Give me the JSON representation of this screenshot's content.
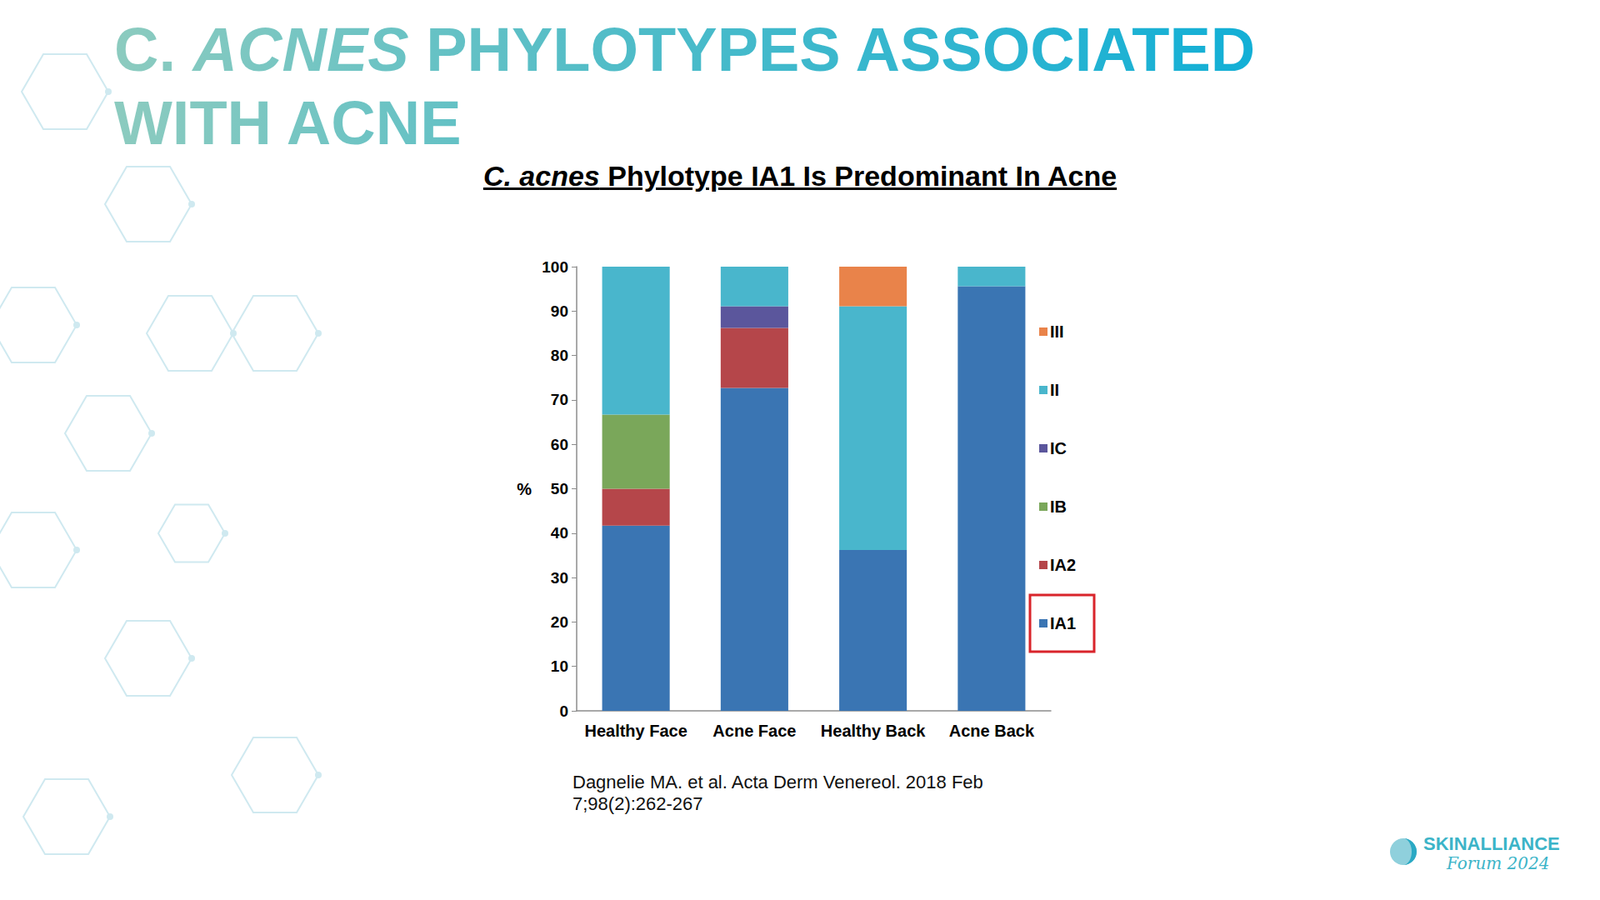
{
  "slide": {
    "title": [
      [
        {
          "text": "C. "
        },
        {
          "text": "ACNES",
          "italic": true
        },
        {
          "text": " PHYLOTYPES ASSOCIATED"
        }
      ],
      [
        {
          "text": "WITH ACNE"
        }
      ]
    ],
    "subtitle": [
      {
        "text": "C. acnes",
        "italic": true
      },
      {
        "text": " Phylotype IA1 Is Predominant In Acne"
      }
    ],
    "citation": [
      "Dagnelie MA. et al. Acta Derm Venereol. 2018 Feb",
      "7;98(2):262-267"
    ],
    "logo": [
      "SKINALLIANCE",
      "Forum 2024"
    ]
  },
  "chart_data": {
    "type": "bar",
    "stacked": true,
    "y_label": "%",
    "categories": [
      "Healthy Face",
      "Acne Face",
      "Healthy Back",
      "Acne Back"
    ],
    "series": [
      {
        "name": "IA1",
        "color": "#3a75b3",
        "values": [
          41.7,
          72.7,
          36.2,
          95.6
        ]
      },
      {
        "name": "IA2",
        "color": "#b5464a",
        "values": [
          8.3,
          13.5,
          0,
          0
        ]
      },
      {
        "name": "IB",
        "color": "#7aa75a",
        "values": [
          16.7,
          0,
          0,
          0
        ]
      },
      {
        "name": "IC",
        "color": "#5b569c",
        "values": [
          0,
          4.9,
          0,
          0
        ]
      },
      {
        "name": "II",
        "color": "#49b6cc",
        "values": [
          33.3,
          8.9,
          54.9,
          4.4
        ]
      },
      {
        "name": "III",
        "color": "#e9834a",
        "values": [
          0,
          0,
          8.9,
          0
        ]
      }
    ],
    "ylim": [
      0,
      100
    ],
    "yticks": [
      0,
      10,
      20,
      30,
      40,
      50,
      60,
      70,
      80,
      90,
      100
    ],
    "grid": false,
    "legend": "right"
  }
}
